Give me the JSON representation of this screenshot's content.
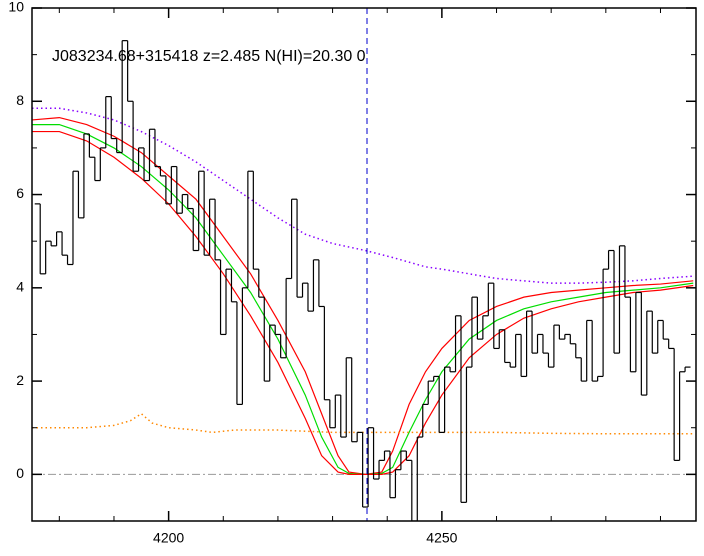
{
  "chart_data": {
    "type": "spectrum",
    "title": "J083234.68+315418 z=2.485 N(HI)=20.30 0",
    "xlim": [
      4175,
      4296.5
    ],
    "ylim": [
      -1,
      10
    ],
    "xticks": [
      4200,
      4250
    ],
    "yticks": [
      0,
      2,
      4,
      6,
      8,
      10
    ],
    "yminor": [
      -1,
      1,
      3,
      5,
      7,
      9
    ],
    "xminor": [
      4180,
      4190,
      4210,
      4220,
      4230,
      4240,
      4260,
      4270,
      4280,
      4290
    ],
    "reference_x": 4236.3,
    "reference_y": 0,
    "flux": {
      "color": "#000000",
      "x": [
        4176,
        4177,
        4178,
        4179,
        4180,
        4181,
        4182,
        4183,
        4184,
        4185,
        4186,
        4187,
        4188,
        4189,
        4190,
        4191,
        4192,
        4193,
        4194,
        4195,
        4196,
        4197,
        4198,
        4199,
        4200,
        4201,
        4202,
        4203,
        4204,
        4205,
        4206,
        4207,
        4208,
        4209,
        4210,
        4211,
        4212,
        4213,
        4214,
        4215,
        4216,
        4217,
        4218,
        4219,
        4220,
        4221,
        4222,
        4223,
        4224,
        4225,
        4226,
        4227,
        4228,
        4229,
        4230,
        4231,
        4232,
        4233,
        4234,
        4235,
        4236,
        4237,
        4238,
        4239,
        4240,
        4241,
        4242,
        4243,
        4244,
        4245,
        4246,
        4247,
        4248,
        4249,
        4250,
        4251,
        4252,
        4253,
        4254,
        4255,
        4256,
        4257,
        4258,
        4259,
        4260,
        4261,
        4262,
        4263,
        4264,
        4265,
        4266,
        4267,
        4268,
        4269,
        4270,
        4271,
        4272,
        4273,
        4274,
        4275,
        4276,
        4277,
        4278,
        4279,
        4280,
        4281,
        4282,
        4283,
        4284,
        4285,
        4286,
        4287,
        4288,
        4289,
        4290,
        4291,
        4292,
        4293,
        4294,
        4295
      ],
      "values": [
        5.8,
        4.3,
        5.0,
        4.9,
        5.2,
        4.7,
        4.5,
        6.5,
        5.5,
        7.3,
        6.8,
        6.3,
        7.0,
        8.1,
        7.2,
        6.9,
        9.3,
        8.0,
        6.5,
        7.0,
        6.3,
        7.4,
        6.6,
        6.4,
        5.8,
        6.6,
        5.6,
        6.0,
        5.7,
        4.8,
        6.5,
        4.7,
        5.9,
        4.6,
        3.0,
        4.4,
        3.7,
        1.5,
        4.0,
        6.5,
        4.4,
        3.8,
        2.0,
        3.2,
        3.0,
        2.5,
        4.2,
        5.9,
        3.8,
        4.1,
        3.5,
        4.6,
        3.6,
        1.6,
        1.0,
        1.7,
        0.8,
        2.5,
        0.7,
        0.9,
        -0.7,
        1.0,
        -0.1,
        0.3,
        0.5,
        -0.5,
        0.1,
        0.5,
        0.3,
        -1.0,
        0.8,
        1.5,
        2.0,
        2.1,
        0.9,
        2.3,
        2.2,
        3.4,
        -0.6,
        2.3,
        3.8,
        2.9,
        3.4,
        4.1,
        2.7,
        3.1,
        2.4,
        2.3,
        3.0,
        2.1,
        3.5,
        2.6,
        3.0,
        2.6,
        2.3,
        3.2,
        2.9,
        3.0,
        2.8,
        2.5,
        2.0,
        3.3,
        2.0,
        2.1,
        4.4,
        4.8,
        2.6,
        4.9,
        3.8,
        2.2,
        3.9,
        1.7,
        3.5,
        2.6,
        3.3,
        2.9,
        2.7,
        0.3,
        2.2,
        2.3
      ]
    },
    "curves": [
      {
        "color": "#ff0000",
        "style": "solid",
        "x": [
          4175,
          4180,
          4185,
          4190,
          4195,
          4200,
          4205,
          4210,
          4215,
          4220,
          4225,
          4228,
          4231,
          4233,
          4236,
          4239,
          4241,
          4244,
          4247,
          4250,
          4255,
          4260,
          4265,
          4270,
          4275,
          4280,
          4285,
          4290,
          4296
        ],
        "values": [
          7.6,
          7.65,
          7.5,
          7.25,
          6.9,
          6.4,
          5.9,
          5.1,
          4.3,
          3.3,
          2.2,
          1.3,
          0.4,
          0.05,
          0,
          0.05,
          0.5,
          1.5,
          2.2,
          2.7,
          3.3,
          3.6,
          3.8,
          3.9,
          3.95,
          4.0,
          4.05,
          4.08,
          4.15
        ]
      },
      {
        "color": "#00dd00",
        "style": "solid",
        "x": [
          4175,
          4180,
          4185,
          4190,
          4195,
          4200,
          4205,
          4210,
          4215,
          4220,
          4225,
          4228,
          4231,
          4233,
          4236,
          4239,
          4241,
          4244,
          4247,
          4250,
          4255,
          4260,
          4265,
          4270,
          4275,
          4280,
          4285,
          4290,
          4296
        ],
        "values": [
          7.5,
          7.5,
          7.3,
          7.0,
          6.6,
          6.1,
          5.5,
          4.7,
          3.9,
          2.9,
          1.7,
          0.8,
          0.15,
          0.02,
          0,
          0.02,
          0.15,
          0.9,
          1.6,
          2.2,
          2.9,
          3.3,
          3.55,
          3.7,
          3.8,
          3.9,
          3.95,
          4.0,
          4.1
        ]
      },
      {
        "color": "#ff0000",
        "style": "solid",
        "x": [
          4175,
          4180,
          4185,
          4190,
          4195,
          4200,
          4205,
          4210,
          4215,
          4220,
          4225,
          4228,
          4231,
          4233,
          4236,
          4239,
          4241,
          4244,
          4247,
          4250,
          4255,
          4260,
          4265,
          4270,
          4275,
          4280,
          4285,
          4290,
          4296
        ],
        "values": [
          7.35,
          7.35,
          7.15,
          6.8,
          6.35,
          5.8,
          5.1,
          4.3,
          3.4,
          2.4,
          1.2,
          0.4,
          0.05,
          0,
          0,
          0,
          0.05,
          0.4,
          1.1,
          1.7,
          2.5,
          3.0,
          3.35,
          3.55,
          3.7,
          3.8,
          3.9,
          3.95,
          4.05
        ]
      },
      {
        "color": "#8800ff",
        "style": "dotted",
        "x": [
          4175,
          4180,
          4185,
          4190,
          4195,
          4200,
          4205,
          4210,
          4215,
          4220,
          4225,
          4230,
          4236,
          4241,
          4244,
          4247,
          4250,
          4255,
          4260,
          4265,
          4270,
          4275,
          4280,
          4285,
          4290,
          4296
        ],
        "values": [
          7.85,
          7.85,
          7.75,
          7.6,
          7.35,
          7.05,
          6.7,
          6.3,
          5.9,
          5.5,
          5.15,
          4.95,
          4.8,
          4.65,
          4.55,
          4.45,
          4.4,
          4.3,
          4.2,
          4.15,
          4.1,
          4.1,
          4.12,
          4.15,
          4.2,
          4.25
        ]
      },
      {
        "color": "#ff8800",
        "style": "dotted",
        "x": [
          4175,
          4185,
          4190,
          4193,
          4195,
          4197,
          4200,
          4205,
          4208,
          4212,
          4220,
          4230,
          4240,
          4250,
          4260,
          4270,
          4280,
          4296
        ],
        "values": [
          1.0,
          1.0,
          1.05,
          1.15,
          1.3,
          1.1,
          1.0,
          0.95,
          0.9,
          0.95,
          0.95,
          0.9,
          0.9,
          0.9,
          0.9,
          0.88,
          0.87,
          0.87
        ]
      }
    ]
  }
}
